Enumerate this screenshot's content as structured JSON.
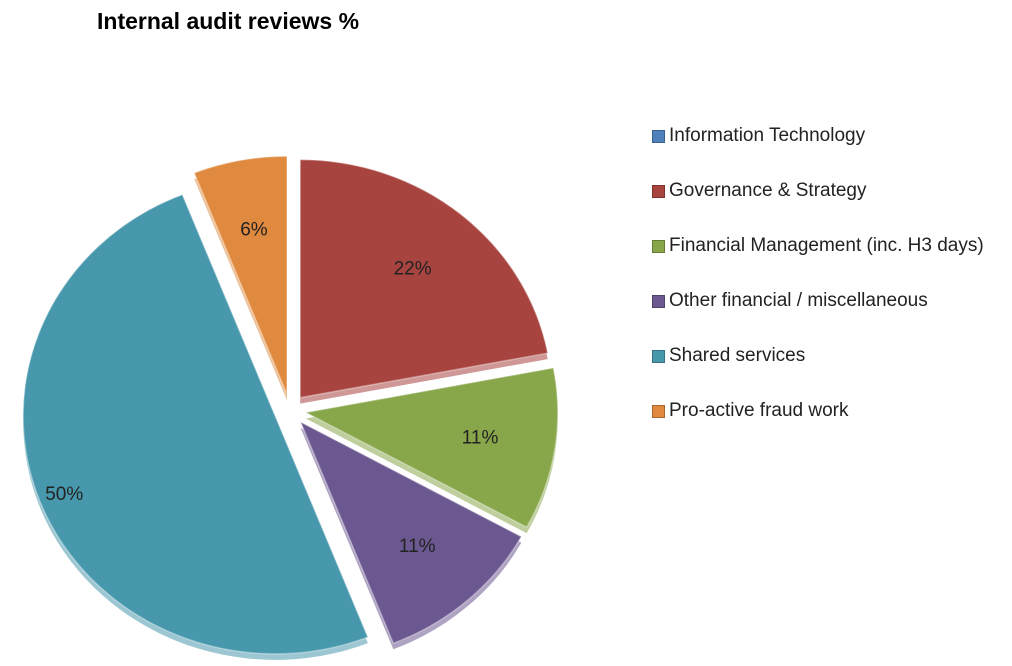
{
  "chart_data": {
    "type": "pie",
    "title": "Internal audit reviews %",
    "categories": [
      "Information Technology",
      "Governance & Strategy",
      "Financial Management (inc. H3 days)",
      "Other financial / miscellaneous",
      "Shared services",
      "Pro-active fraud work"
    ],
    "values": [
      0,
      22,
      11,
      11,
      50,
      6
    ],
    "value_labels": [
      null,
      "22%",
      "11%",
      "11%",
      "50%",
      "6%"
    ],
    "colors": [
      "#4f81bd",
      "#a8443f",
      "#88a64a",
      "#6c5890",
      "#4898ad",
      "#df8a3e"
    ],
    "legend": "right"
  }
}
